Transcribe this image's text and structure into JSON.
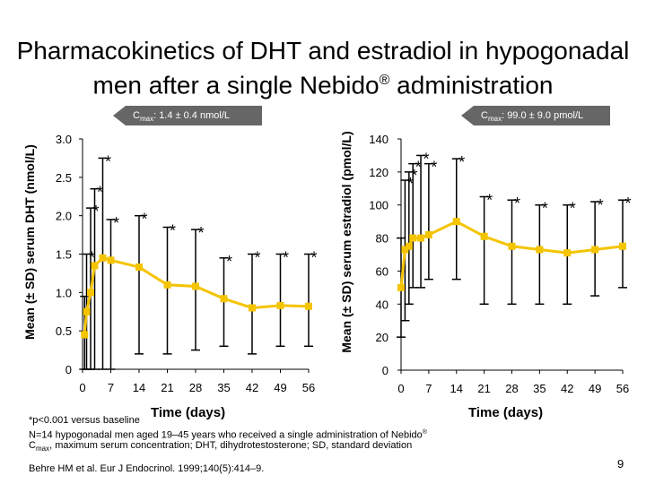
{
  "slide": {
    "title_line1": "Pharmacokinetics of DHT and estradiol in hypogonadal",
    "title_line2": "men after a single Nebido",
    "title_reg": "®",
    "title_line2_end": " administration",
    "page_number": "9"
  },
  "callouts": {
    "dht_sub_prefix": "C",
    "dht_sub": "max",
    "dht_text": ": 1.4 ± 0.4 nmol/L",
    "e2_sub_prefix": "C",
    "e2_sub": "max",
    "e2_text": ": 99.0 ± 9.0 pmol/L"
  },
  "footnotes": {
    "line1": "*p<0.001 versus baseline",
    "line2": "N=14 hypogonadal men aged 19–45 years who received a single administration of Nebido",
    "line2_sup": "®",
    "line3_prefix": "C",
    "line3_sub": "max",
    "line3_text": ", maximum serum concentration; DHT, dihydrotestosterone; SD, standard deviation",
    "reference": "Behre HM et al. Eur J Endocrinol. 1999;140(5):414–9."
  },
  "chart_data": [
    {
      "type": "line",
      "ylabel": "Mean (± SD) serum DHT (nmol/L)",
      "xlabel": "Time (days)",
      "xlim": [
        0,
        56
      ],
      "ylim": [
        0,
        3.0
      ],
      "xticks": [
        "0",
        "7",
        "14",
        "21",
        "28",
        "35",
        "42",
        "49",
        "56"
      ],
      "yticks": [
        "0",
        "0.5",
        "1.0",
        "1.5",
        "2.0",
        "2.5",
        "3.0"
      ],
      "series_color": "#f5c400",
      "x": [
        0.5,
        1,
        2,
        3,
        5,
        7,
        14,
        21,
        28,
        35,
        42,
        49,
        56
      ],
      "y": [
        0.45,
        0.75,
        1.0,
        1.35,
        1.45,
        1.42,
        1.33,
        1.1,
        1.08,
        0.92,
        0.8,
        0.83,
        0.82
      ],
      "sd_upper": [
        0.95,
        1.5,
        2.1,
        2.35,
        2.75,
        1.95,
        2.0,
        1.85,
        1.82,
        1.45,
        1.5,
        1.5,
        1.5
      ],
      "sd_lower": [
        0.0,
        0.0,
        0.0,
        0.0,
        0.0,
        0.0,
        0.2,
        0.2,
        0.25,
        0.3,
        0.2,
        0.3,
        0.3
      ],
      "significant": [
        false,
        true,
        true,
        true,
        true,
        true,
        true,
        true,
        true,
        true,
        true,
        true,
        true
      ]
    },
    {
      "type": "line",
      "ylabel": "Mean (± SD) serum estradiol (pmol/L)",
      "xlabel": "Time (days)",
      "xlim": [
        0,
        56
      ],
      "ylim": [
        0,
        140
      ],
      "xticks": [
        "0",
        "7",
        "14",
        "21",
        "28",
        "35",
        "42",
        "49",
        "56"
      ],
      "yticks": [
        "0",
        "20",
        "40",
        "60",
        "80",
        "100",
        "120",
        "140"
      ],
      "series_color": "#f5c400",
      "x": [
        0,
        1,
        2,
        3,
        5,
        7,
        14,
        21,
        28,
        35,
        42,
        49,
        56
      ],
      "y": [
        50,
        73,
        75,
        80,
        80,
        82,
        90,
        81,
        75,
        73,
        71,
        73,
        75
      ],
      "sd_upper": [
        80,
        115,
        120,
        125,
        130,
        125,
        128,
        105,
        103,
        100,
        100,
        102,
        103
      ],
      "sd_lower": [
        20,
        30,
        40,
        50,
        50,
        55,
        55,
        40,
        40,
        40,
        40,
        45,
        50
      ],
      "significant": [
        false,
        true,
        true,
        true,
        true,
        true,
        true,
        true,
        true,
        true,
        true,
        true,
        true
      ]
    }
  ]
}
